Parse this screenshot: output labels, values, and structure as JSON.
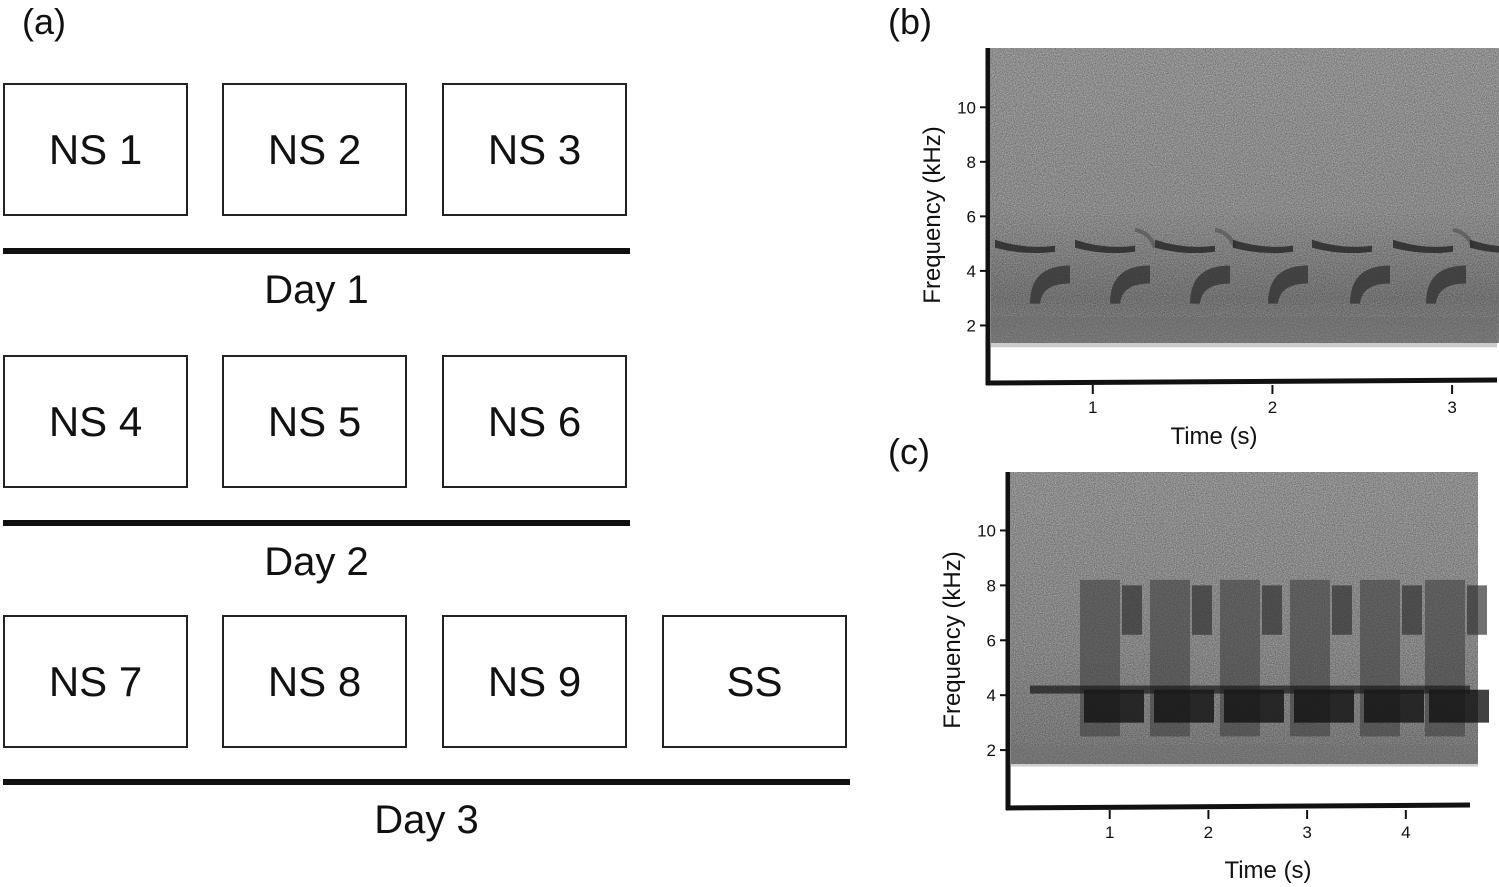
{
  "panel_a": {
    "label": "(a)",
    "days": [
      {
        "name": "Day 1",
        "sessions": [
          "NS 1",
          "NS 2",
          "NS 3"
        ]
      },
      {
        "name": "Day 2",
        "sessions": [
          "NS 4",
          "NS 5",
          "NS 6"
        ]
      },
      {
        "name": "Day 3",
        "sessions": [
          "NS 7",
          "NS 8",
          "NS 9",
          "SS"
        ]
      }
    ]
  },
  "chart_data": [
    {
      "type": "heatmap",
      "panel_label": "(b)",
      "xlabel": "Time (s)",
      "ylabel": "Frequency (kHz)",
      "x_ticks": [
        "1",
        "2",
        "3"
      ],
      "y_ticks": [
        "2",
        "4",
        "6",
        "8",
        "10"
      ],
      "xlim": [
        0.4,
        3.25
      ],
      "ylim": [
        0,
        11
      ],
      "note_frequencies_khz": [
        5,
        3.5
      ]
    },
    {
      "type": "heatmap",
      "panel_label": "(c)",
      "xlabel": "Time (s)",
      "ylabel": "Frequency (kHz)",
      "x_ticks": [
        "1",
        "2",
        "3",
        "4"
      ],
      "y_ticks": [
        "2",
        "4",
        "6",
        "8",
        "10"
      ],
      "xlim": [
        0,
        4.65
      ],
      "ylim": [
        0,
        11
      ],
      "note_frequencies_khz": [
        4.2,
        3.6,
        7.5
      ]
    }
  ]
}
